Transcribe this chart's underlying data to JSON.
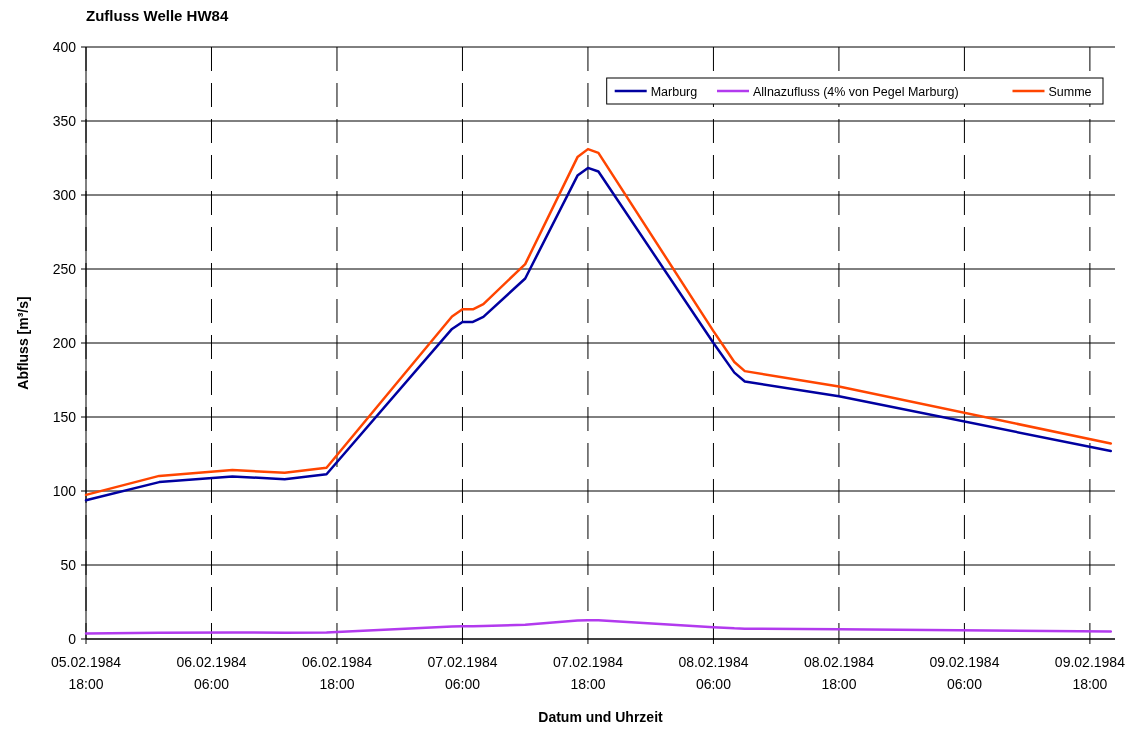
{
  "chart_data": {
    "type": "line",
    "title": "Zufluss Welle HW84",
    "xlabel": "Datum und Uhrzeit",
    "ylabel": "Abfluss [m³/s]",
    "x": [
      "1984-02-05T18:00",
      "1984-02-06T01:00",
      "1984-02-06T08:00",
      "1984-02-06T13:00",
      "1984-02-06T17:00",
      "1984-02-07T05:00",
      "1984-02-07T06:00",
      "1984-02-07T07:00",
      "1984-02-07T08:00",
      "1984-02-07T12:00",
      "1984-02-07T17:00",
      "1984-02-07T18:00",
      "1984-02-07T19:00",
      "1984-02-08T06:00",
      "1984-02-08T08:00",
      "1984-02-08T09:00",
      "1984-02-08T18:00",
      "1984-02-09T20:00"
    ],
    "series": [
      {
        "name": "Marburg",
        "color": "#0000a0",
        "values": [
          93.7,
          106,
          109.8,
          108,
          111.3,
          209.5,
          214.2,
          214.2,
          217.6,
          243.6,
          313.1,
          318.3,
          315.9,
          200,
          180,
          174,
          164,
          127
        ]
      },
      {
        "name": "Allnazufluss (4% von Pegel Marburg)",
        "color": "#b23aee",
        "values": [
          3.7,
          4.2,
          4.4,
          4.3,
          4.4,
          8.4,
          8.6,
          8.6,
          8.7,
          9.7,
          12.5,
          12.7,
          12.6,
          8,
          7.2,
          7,
          6.6,
          5.1
        ]
      },
      {
        "name": "Summe",
        "color": "#ff4500",
        "values": [
          97.4,
          110.2,
          114.2,
          112.3,
          115.7,
          217.9,
          222.8,
          222.8,
          226.3,
          253.3,
          325.6,
          331,
          328.5,
          208,
          187.2,
          181,
          170.6,
          132.1
        ]
      }
    ],
    "xlim": [
      "1984-02-05T18:00",
      "1984-02-09T20:24"
    ],
    "xticks": [
      {
        "value": "1984-02-05T18:00",
        "label": "05.02.1984 18:00"
      },
      {
        "value": "1984-02-06T06:00",
        "label": "06.02.1984 06:00"
      },
      {
        "value": "1984-02-06T18:00",
        "label": "06.02.1984 18:00"
      },
      {
        "value": "1984-02-07T06:00",
        "label": "07.02.1984 06:00"
      },
      {
        "value": "1984-02-07T18:00",
        "label": "07.02.1984 18:00"
      },
      {
        "value": "1984-02-08T06:00",
        "label": "08.02.1984 06:00"
      },
      {
        "value": "1984-02-08T18:00",
        "label": "08.02.1984 18:00"
      },
      {
        "value": "1984-02-09T06:00",
        "label": "09.02.1984 06:00"
      },
      {
        "value": "1984-02-09T18:00",
        "label": "09.02.1984 18:00"
      }
    ],
    "ylim": [
      0,
      400
    ],
    "yticks": [
      0,
      50,
      100,
      150,
      200,
      250,
      300,
      350,
      400
    ],
    "grid": true,
    "legend": "top right",
    "line_style": "solid",
    "marker": "none"
  }
}
